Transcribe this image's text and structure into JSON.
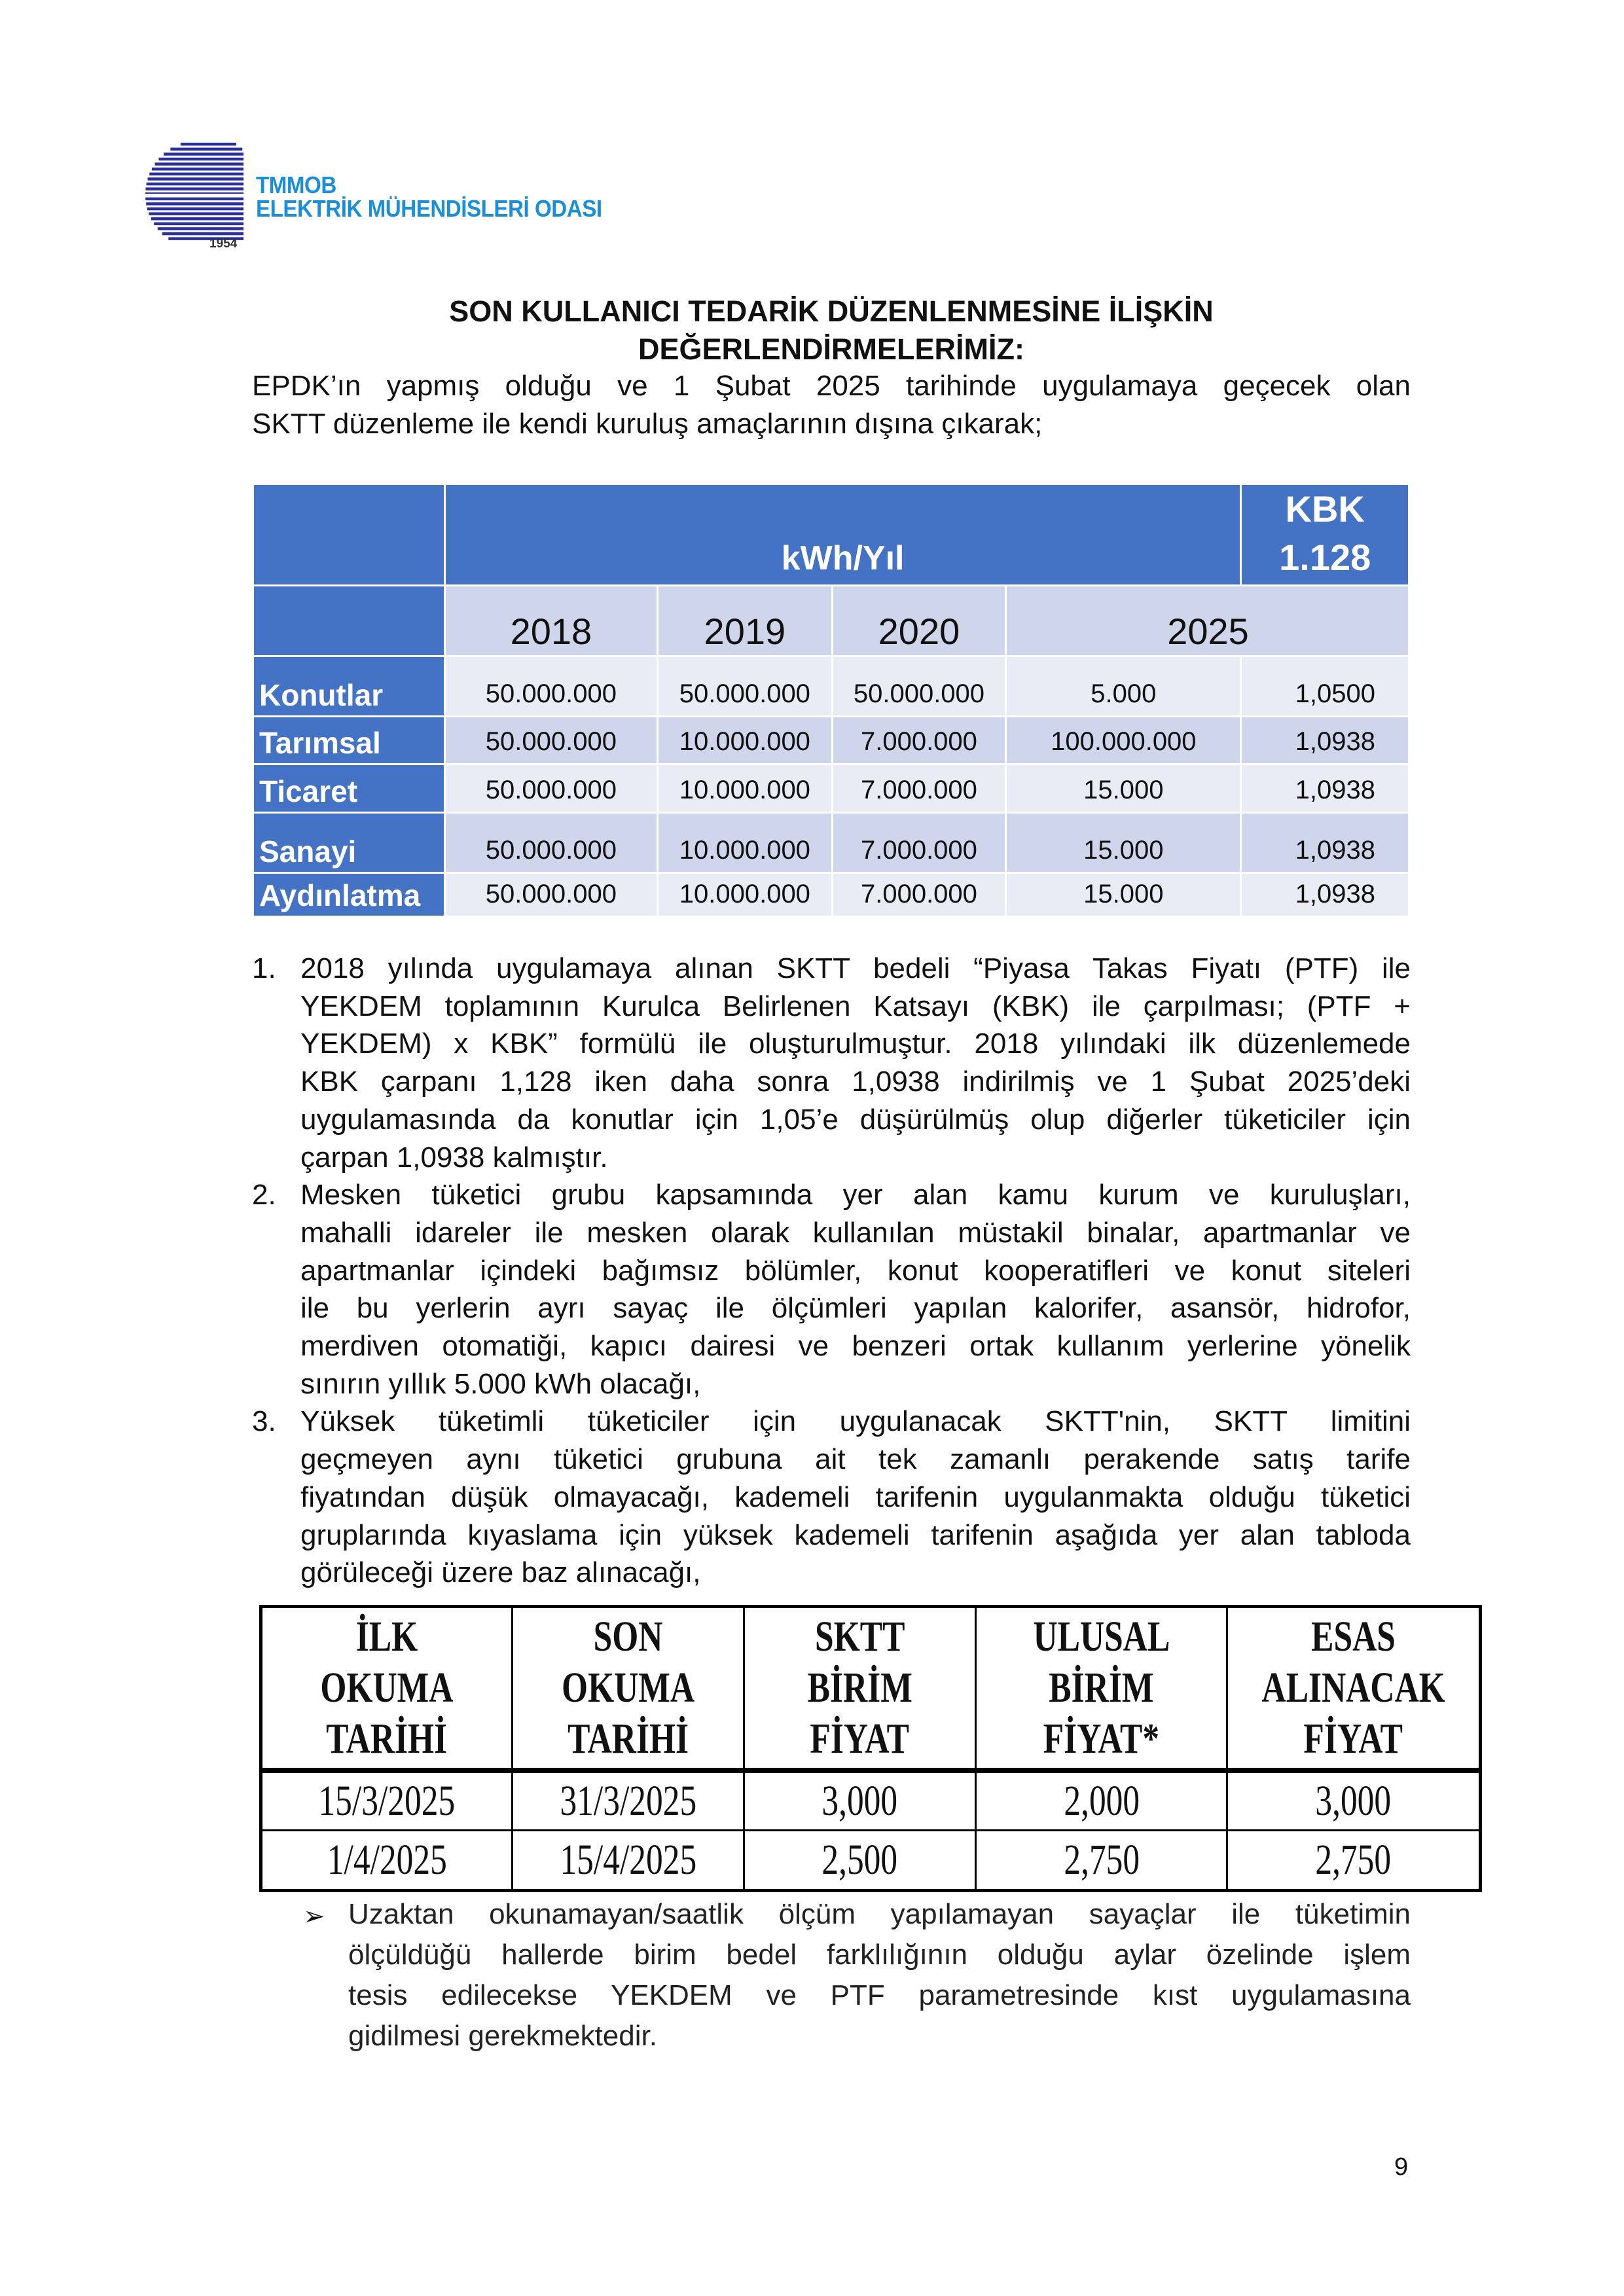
{
  "header": {
    "org_line1": "TMMOB",
    "org_line2": "ELEKTRİK MÜHENDİSLERİ ODASI",
    "logo_year": "1954",
    "logo_color": "#1a8fd8",
    "logo_mark_color": "#2b2f9c"
  },
  "title": {
    "line1": "SON KULLANICI TEDARİK DÜZENLENMESİNE İLİŞKİN",
    "line2": "DEĞERLENDİRMELERİMİZ:"
  },
  "intro": [
    "EPDK’ın yapmış olduğu ve 1 Şubat 2025 tarihinde uygulamaya geçecek olan",
    "SKTT düzenleme ile kendi kuruluş amaçlarının dışına çıkarak;"
  ],
  "table1": {
    "header_unit": "kWh/Yıl",
    "header_kbk_line1": "KBK",
    "header_kbk_line2": "1.128",
    "years": [
      "2018",
      "2019",
      "2020",
      "2025"
    ],
    "rows": [
      {
        "label": "Konutlar",
        "values": [
          "50.000.000",
          "50.000.000",
          "50.000.000",
          "5.000",
          "1,0500"
        ]
      },
      {
        "label": "Tarımsal",
        "values": [
          "50.000.000",
          "10.000.000",
          "7.000.000",
          "100.000.000",
          "1,0938"
        ]
      },
      {
        "label": "Ticaret",
        "values": [
          "50.000.000",
          "10.000.000",
          "7.000.000",
          "15.000",
          "1,0938"
        ]
      },
      {
        "label": "Sanayi",
        "values": [
          "50.000.000",
          "10.000.000",
          "7.000.000",
          "15.000",
          "1,0938"
        ]
      },
      {
        "label": "Aydınlatma",
        "values": [
          "50.000.000",
          "10.000.000",
          "7.000.000",
          "15.000",
          "1,0938"
        ]
      }
    ],
    "header_color": "#4472c4",
    "band_dark": "#cfd5ea",
    "band_light": "#e9ebf5"
  },
  "list": [
    {
      "num": "1.",
      "lines": [
        "2018 yılında uygulamaya alınan SKTT bedeli “Piyasa Takas Fiyatı (PTF) ile",
        "YEKDEM toplamının Kurulca Belirlenen Katsayı (KBK) ile çarpılması; (PTF +",
        "YEKDEM) x KBK” formülü ile oluşturulmuştur. 2018 yılındaki ilk düzenlemede",
        "KBK çarpanı 1,128 iken daha sonra 1,0938 indirilmiş ve 1 Şubat 2025’deki",
        "uygulamasında da konutlar için 1,05’e düşürülmüş olup diğerler tüketiciler için",
        "çarpan 1,0938 kalmıştır."
      ]
    },
    {
      "num": "2.",
      "lines": [
        "Mesken tüketici grubu kapsamında yer alan kamu kurum ve kuruluşları,",
        "mahalli idareler ile mesken olarak kullanılan müstakil binalar, apartmanlar ve",
        "apartmanlar içindeki bağımsız bölümler, konut kooperatifleri ve konut siteleri",
        "ile bu yerlerin ayrı sayaç ile ölçümleri yapılan kalorifer, asansör, hidrofor,",
        "merdiven otomatiği, kapıcı dairesi ve benzeri ortak kullanım yerlerine yönelik",
        "sınırın yıllık 5.000 kWh olacağı,"
      ]
    },
    {
      "num": "3.",
      "lines": [
        "Yüksek tüketimli tüketiciler için uygulanacak SKTT'nin, SKTT limitini",
        "geçmeyen aynı tüketici grubuna ait tek zamanlı perakende satış tarife",
        "fiyatından düşük olmayacağı, kademeli tarifenin uygulanmakta olduğu tüketici",
        "gruplarında kıyaslama için yüksek kademeli tarifenin aşağıda yer alan tabloda",
        "görüleceği üzere baz alınacağı,"
      ]
    }
  ],
  "table2": {
    "headers": [
      [
        "İLK OKUMA",
        "TARİHİ"
      ],
      [
        "SON OKUMA",
        "TARİHİ"
      ],
      [
        "SKTT BİRİM",
        "FİYAT"
      ],
      [
        "ULUSAL",
        "BİRİM FİYAT*"
      ],
      [
        "ESAS",
        "ALINACAK",
        "FİYAT"
      ]
    ],
    "rows": [
      [
        "15/3/2025",
        "31/3/2025",
        "3,000",
        "2,000",
        "3,000"
      ],
      [
        "1/4/2025",
        "15/4/2025",
        "2,500",
        "2,750",
        "2,750"
      ]
    ]
  },
  "bullet": {
    "marker": "➢",
    "lines": [
      "Uzaktan okunamayan/saatlik ölçüm yapılamayan sayaçlar ile tüketimin",
      "ölçüldüğü hallerde birim bedel farklılığının olduğu aylar özelinde işlem",
      "tesis edilecekse YEKDEM ve PTF parametresinde kıst uygulamasına",
      "gidilmesi gerekmektedir."
    ]
  },
  "page_number": "9"
}
